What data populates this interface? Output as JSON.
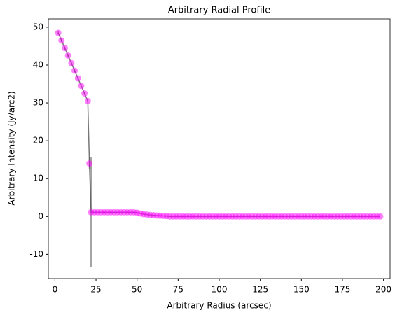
{
  "chart_data": {
    "type": "line",
    "title": "Arbitrary Radial Profile",
    "xlabel": "Arbitrary Radius (arcsec)",
    "ylabel": "Arbitrary Intensity (Jy/arc2)",
    "xlim": [
      -4,
      204
    ],
    "ylim": [
      -16.4,
      52.2
    ],
    "xticks": [
      0,
      25,
      50,
      75,
      100,
      125,
      150,
      175,
      200
    ],
    "yticks": [
      -10,
      0,
      10,
      20,
      30,
      40,
      50
    ],
    "grid": false,
    "series": [
      {
        "color": "#ff00ff",
        "line_color": "#555555",
        "x": [
          2,
          4,
          6,
          8,
          10,
          12,
          14,
          16,
          18,
          20,
          21,
          22,
          24,
          26,
          28,
          30,
          32,
          34,
          36,
          38,
          40,
          42,
          44,
          46,
          48,
          50,
          52,
          54,
          56,
          58,
          60,
          62,
          64,
          66,
          68,
          70,
          72,
          74,
          76,
          78,
          80,
          82,
          84,
          86,
          88,
          90,
          92,
          94,
          96,
          98,
          100,
          102,
          104,
          106,
          108,
          110,
          112,
          114,
          116,
          118,
          120,
          122,
          124,
          126,
          128,
          130,
          132,
          134,
          136,
          138,
          140,
          142,
          144,
          146,
          148,
          150,
          152,
          154,
          156,
          158,
          160,
          162,
          164,
          166,
          168,
          170,
          172,
          174,
          176,
          178,
          180,
          182,
          184,
          186,
          188,
          190,
          192,
          194,
          196,
          198
        ],
        "values": [
          48.5,
          46.5,
          44.5,
          42.5,
          40.5,
          38.5,
          36.5,
          34.5,
          32.5,
          30.5,
          14,
          1.1,
          1.1,
          1.1,
          1.1,
          1.1,
          1.1,
          1.1,
          1.1,
          1.1,
          1.1,
          1.1,
          1.1,
          1.1,
          1.1,
          1.0,
          0.8,
          0.6,
          0.5,
          0.4,
          0.3,
          0.25,
          0.2,
          0.15,
          0.1,
          0,
          0,
          0,
          0,
          0,
          0,
          0,
          0,
          0,
          0,
          0,
          0,
          0,
          0,
          0,
          0,
          0,
          0,
          0,
          0,
          0,
          0,
          0,
          0,
          0,
          0,
          0,
          0,
          0,
          0,
          0,
          0,
          0,
          0,
          0,
          0,
          0,
          0,
          0,
          0,
          0,
          0,
          0,
          0,
          0,
          0,
          0,
          0,
          0,
          0,
          0,
          0,
          0,
          0,
          0,
          0,
          0,
          0,
          0,
          0,
          0,
          0,
          0,
          0,
          0
        ],
        "errors": [
          0.4,
          0.4,
          0.4,
          0.4,
          0.4,
          0.4,
          0.4,
          0.4,
          0.4,
          0.4,
          1.5,
          14.5,
          0,
          0,
          0,
          0,
          0,
          0,
          0,
          0,
          0,
          0,
          0,
          0,
          0,
          0,
          0,
          0,
          0,
          0,
          0,
          0,
          0,
          0,
          0,
          0,
          0,
          0,
          0,
          0,
          0,
          0,
          0,
          0,
          0,
          0,
          0,
          0,
          0,
          0,
          0,
          0,
          0,
          0,
          0,
          0,
          0,
          0,
          0,
          0,
          0,
          0,
          0,
          0,
          0,
          0,
          0,
          0,
          0,
          0,
          0,
          0,
          0,
          0,
          0,
          0,
          0,
          0,
          0,
          0,
          0,
          0,
          0,
          0,
          0,
          0,
          0,
          0,
          0,
          0,
          0,
          0,
          0,
          0,
          0,
          0,
          0,
          0,
          0,
          0
        ]
      }
    ]
  }
}
